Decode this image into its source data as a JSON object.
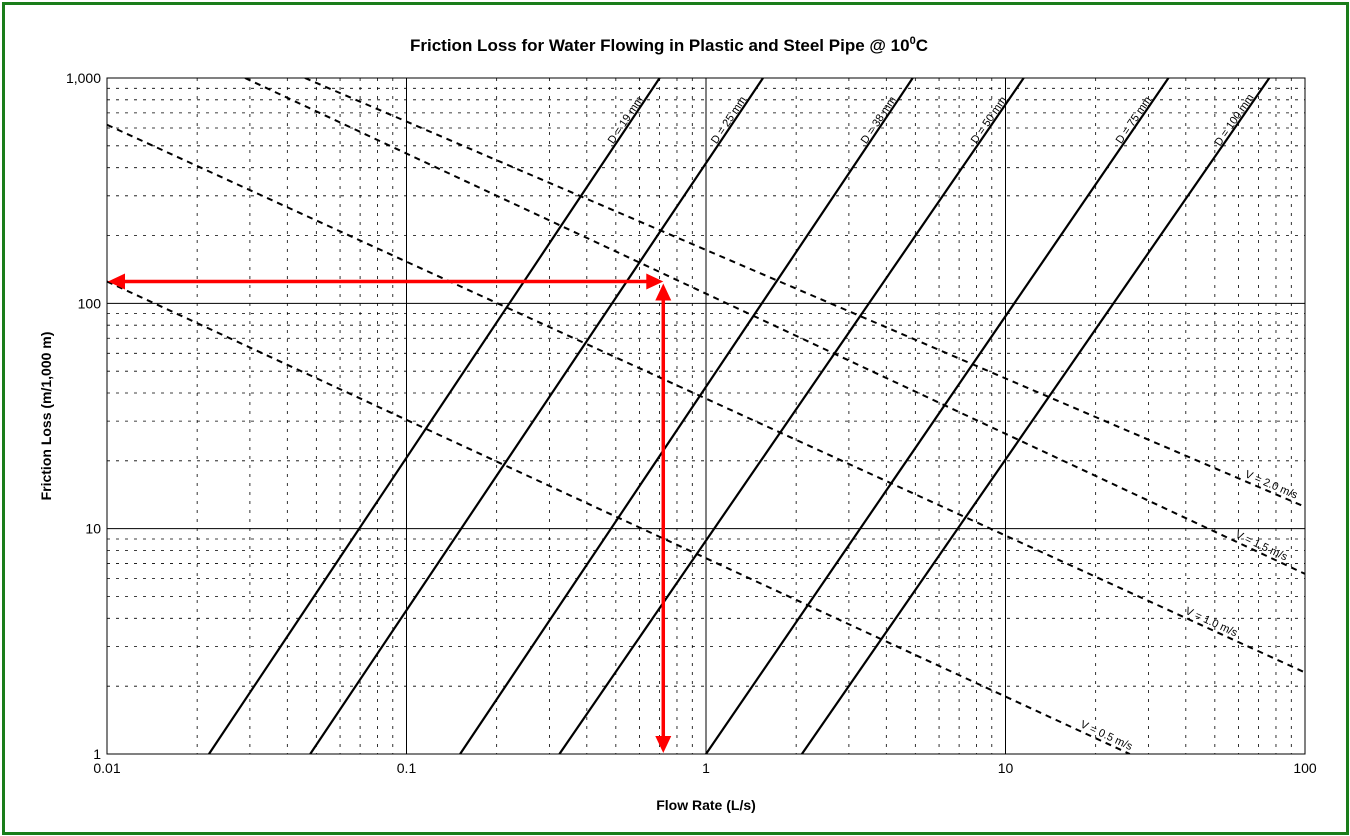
{
  "chart_data": {
    "type": "line",
    "title_main": "Friction Loss for Water Flowing in Plastic and Steel Pipe @ 10",
    "title_sup": "0",
    "title_end": "C",
    "xlabel": "Flow Rate (L/s)",
    "ylabel": "Friction Loss (m/1,000 m)",
    "xscale": "log",
    "yscale": "log",
    "xlim": [
      0.01,
      100
    ],
    "ylim": [
      1,
      1000
    ],
    "x_ticks": [
      "0.01",
      "0.1",
      "1",
      "10",
      "100"
    ],
    "y_ticks": [
      "1",
      "10",
      "100",
      "1,000"
    ],
    "grid": "major solid, minor dashed",
    "diameter_series": [
      {
        "name": "D = 19 mm",
        "points": [
          [
            0.0219,
            1
          ],
          [
            0.7,
            1000
          ]
        ]
      },
      {
        "name": "D = 25 mm",
        "points": [
          [
            0.0477,
            1
          ],
          [
            1.55,
            1000
          ]
        ]
      },
      {
        "name": "D = 38 mm",
        "points": [
          [
            0.151,
            1
          ],
          [
            4.9,
            1000
          ]
        ]
      },
      {
        "name": "D = 50 mm",
        "points": [
          [
            0.324,
            1
          ],
          [
            11.5,
            1000
          ]
        ]
      },
      {
        "name": "D = 75 mm",
        "points": [
          [
            1.0,
            1
          ],
          [
            35,
            1000
          ]
        ]
      },
      {
        "name": "D = 100 mm",
        "points": [
          [
            2.09,
            1
          ],
          [
            76,
            1000
          ]
        ]
      }
    ],
    "velocity_series": [
      {
        "name": "V = 2.0 m/s",
        "points": [
          [
            0.0458,
            1000
          ],
          [
            100,
            12.5
          ]
        ]
      },
      {
        "name": "V = 1.5 m/s",
        "points": [
          [
            0.0289,
            1000
          ],
          [
            100,
            6.3
          ]
        ]
      },
      {
        "name": "V = 1.0 m/s",
        "points": [
          [
            0.01,
            620
          ],
          [
            100,
            2.3
          ]
        ]
      },
      {
        "name": "V = 0.5 m/s",
        "points": [
          [
            0.01,
            125
          ],
          [
            26,
            1
          ]
        ]
      }
    ],
    "annotation_arrows": {
      "color": "#ff0000",
      "flow_rate": 0.72,
      "friction_loss": 125
    }
  }
}
